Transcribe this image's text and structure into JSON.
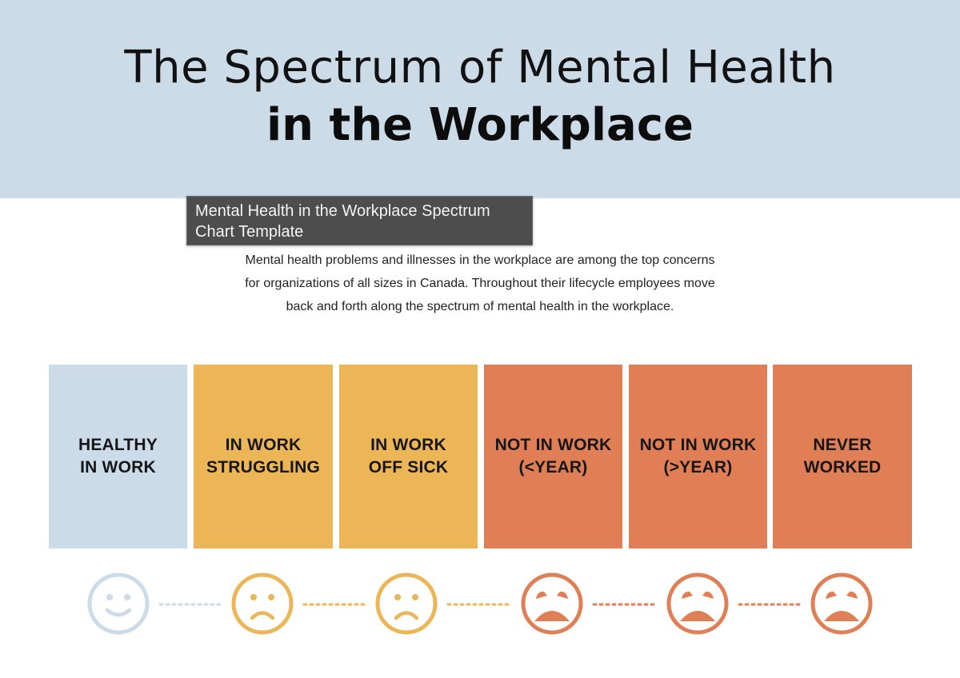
{
  "header": {
    "title_line1": "The Spectrum of Mental Health",
    "title_line2": "in the Workplace",
    "background": "#cbdbe8"
  },
  "tooltip": {
    "line1": "Mental Health in the Workplace Spectrum",
    "line2": "Chart Template"
  },
  "intro": {
    "line1": "Mental health problems and illnesses in the workplace are among the top concerns",
    "line2": "for organizations of all sizes in Canada. Throughout their lifecycle employees move",
    "line3": "back and forth along the spectrum of mental health in the workplace."
  },
  "spectrum": [
    {
      "line1": "HEALTHY",
      "line2": "IN WORK",
      "color": "#cbdbe8",
      "icon": "smile-face-icon"
    },
    {
      "line1": "IN WORK",
      "line2": "STRUGGLING",
      "color": "#ecb556",
      "icon": "sad-face-icon"
    },
    {
      "line1": "IN WORK",
      "line2": "OFF SICK",
      "color": "#ecb556",
      "icon": "sad-face-icon"
    },
    {
      "line1": "NOT IN WORK",
      "line2": "(<YEAR)",
      "color": "#e07f56",
      "icon": "crying-face-icon"
    },
    {
      "line1": "NOT IN WORK",
      "line2": "(>YEAR)",
      "color": "#e07f56",
      "icon": "crying-face-icon"
    },
    {
      "line1": "NEVER",
      "line2": "WORKED",
      "color": "#e07f56",
      "icon": "crying-face-icon"
    }
  ]
}
